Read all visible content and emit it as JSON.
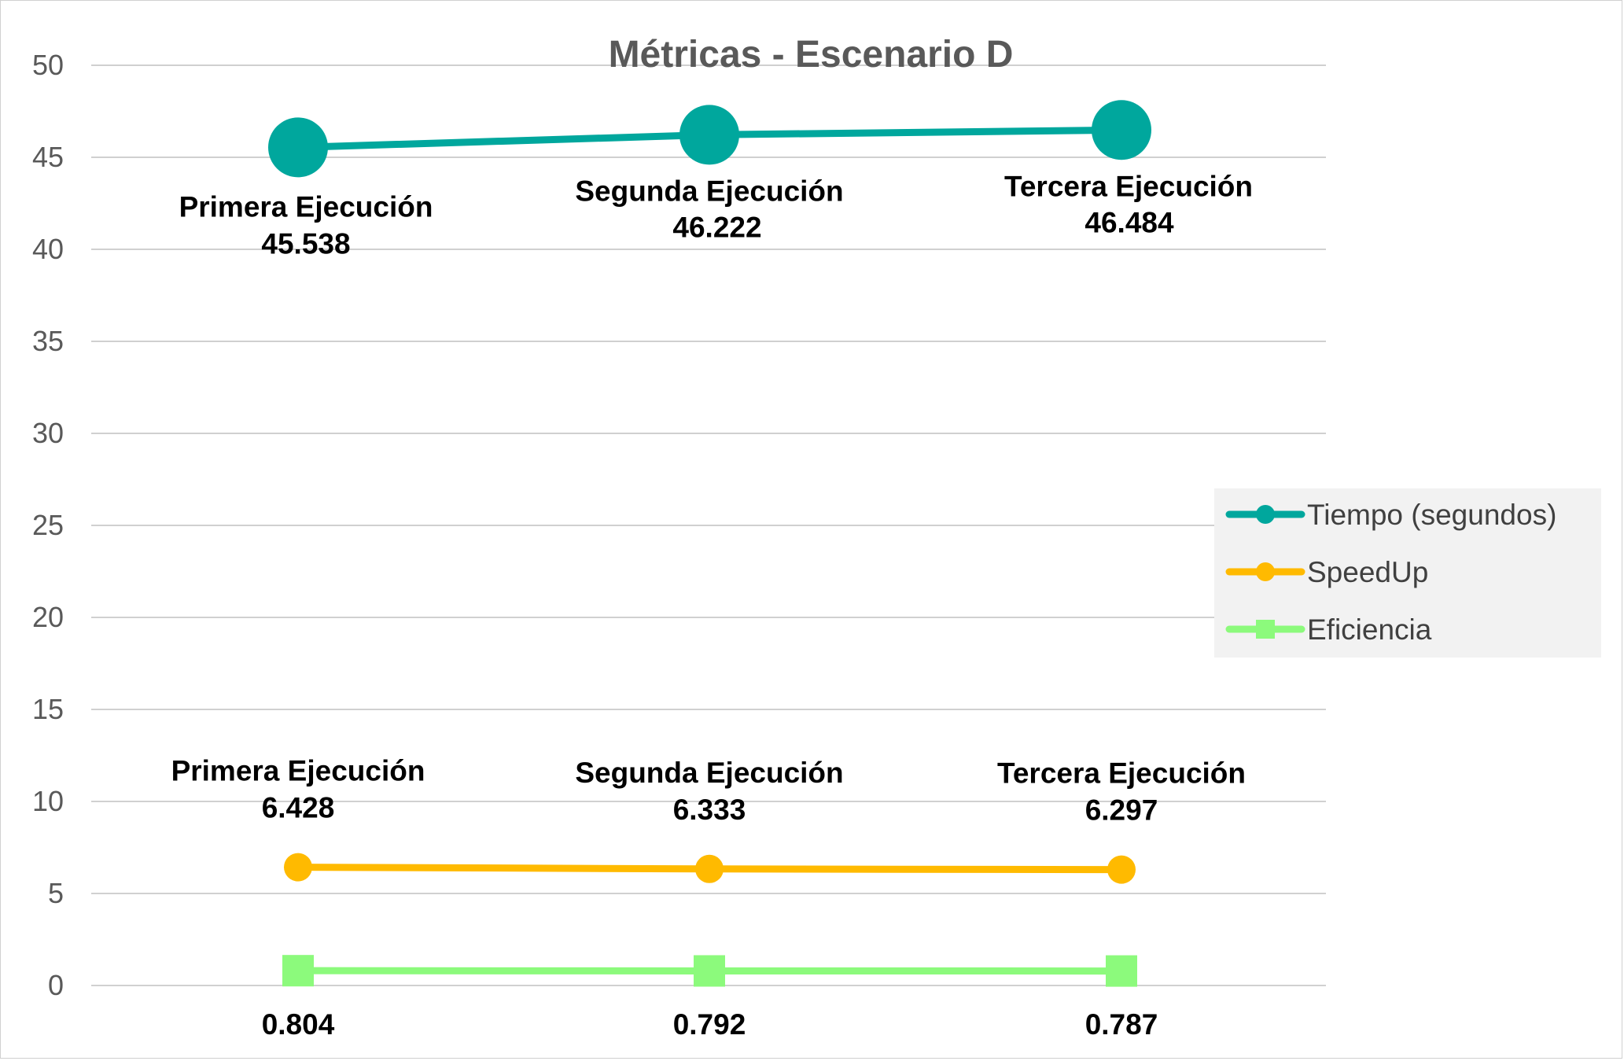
{
  "chart_data": {
    "type": "line",
    "title": "Métricas - Escenario D",
    "xlabel": "",
    "ylabel": "",
    "categories": [
      "Primera Ejecución",
      "Segunda Ejecución",
      "Tercera Ejecución"
    ],
    "ylim": [
      0,
      50
    ],
    "yticks": [
      0,
      5,
      10,
      15,
      20,
      25,
      30,
      35,
      40,
      45,
      50
    ],
    "grid": true,
    "legend_position": "right",
    "series": [
      {
        "name": "Tiempo (segundos)",
        "values": [
          45.538,
          46.222,
          46.484
        ],
        "value_labels": [
          "45.538",
          "46.222",
          "46.484"
        ],
        "color": "#00A79D",
        "marker": "circle"
      },
      {
        "name": "SpeedUp",
        "values": [
          6.428,
          6.333,
          6.297
        ],
        "value_labels": [
          "6.428",
          "6.333",
          "6.297"
        ],
        "color": "#FFBA00",
        "marker": "circle"
      },
      {
        "name": "Eficiencia",
        "values": [
          0.804,
          0.792,
          0.787
        ],
        "value_labels": [
          "0.804",
          "0.792",
          "0.787"
        ],
        "color": "#8CFA7C",
        "marker": "square"
      }
    ]
  }
}
